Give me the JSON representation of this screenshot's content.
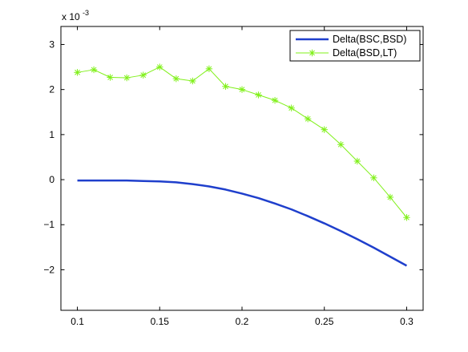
{
  "chart_data": {
    "type": "line",
    "title": "",
    "xlabel": "",
    "ylabel": "",
    "y_multiplier_label": {
      "base": "x 10",
      "exponent": "-3"
    },
    "xlim": [
      0.09,
      0.31
    ],
    "ylim": [
      -2.9,
      3.4
    ],
    "x_ticks": [
      0.1,
      0.15,
      0.2,
      0.25,
      0.3
    ],
    "x_tick_labels": [
      "0.1",
      "0.15",
      "0.2",
      "0.25",
      "0.3"
    ],
    "y_ticks": [
      -2,
      -1,
      0,
      1,
      2,
      3
    ],
    "y_tick_labels": [
      "−2",
      "−1",
      "0",
      "1",
      "2",
      "3"
    ],
    "grid": false,
    "legend_position": "top-right",
    "series": [
      {
        "name": "Delta(BSC,BSD)",
        "color": "#1f3fcc",
        "marker": "none",
        "x": [
          0.1,
          0.11,
          0.12,
          0.13,
          0.14,
          0.15,
          0.16,
          0.17,
          0.18,
          0.19,
          0.2,
          0.21,
          0.22,
          0.23,
          0.24,
          0.25,
          0.26,
          0.27,
          0.28,
          0.29,
          0.3
        ],
        "values": [
          -0.02,
          -0.02,
          -0.02,
          -0.02,
          -0.03,
          -0.04,
          -0.06,
          -0.1,
          -0.15,
          -0.22,
          -0.31,
          -0.41,
          -0.53,
          -0.66,
          -0.81,
          -0.97,
          -1.14,
          -1.32,
          -1.51,
          -1.71,
          -1.91
        ]
      },
      {
        "name": "Delta(BSD,LT)",
        "color": "#80f01a",
        "marker": "asterisk",
        "x": [
          0.1,
          0.11,
          0.12,
          0.13,
          0.14,
          0.15,
          0.16,
          0.17,
          0.18,
          0.19,
          0.2,
          0.21,
          0.22,
          0.23,
          0.24,
          0.25,
          0.26,
          0.27,
          0.28,
          0.29,
          0.3
        ],
        "values": [
          2.38,
          2.44,
          2.27,
          2.26,
          2.32,
          2.5,
          2.24,
          2.19,
          2.46,
          2.07,
          2.0,
          1.88,
          1.76,
          1.59,
          1.35,
          1.11,
          0.78,
          0.41,
          0.04,
          -0.39,
          -0.84
        ]
      }
    ]
  }
}
